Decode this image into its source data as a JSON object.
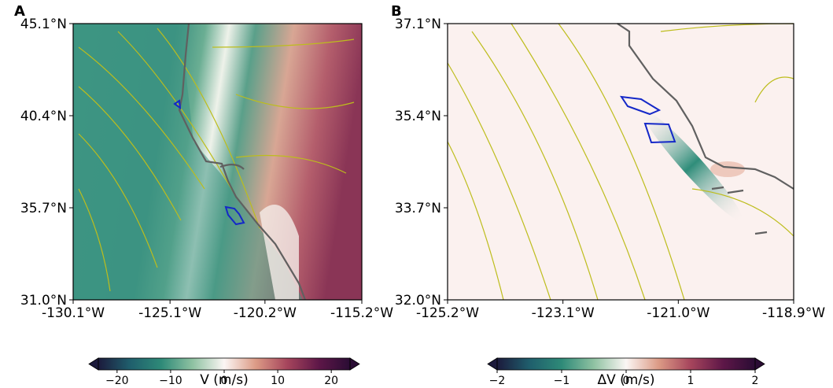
{
  "chart_data": [
    {
      "type": "map",
      "panel_label": "A",
      "xlim": [
        -130.1,
        -115.2
      ],
      "ylim": [
        31.0,
        45.1
      ],
      "xticks": [
        {
          "value": -130.1,
          "label": "-130.1°W"
        },
        {
          "value": -125.1,
          "label": "-125.1°W"
        },
        {
          "value": -120.2,
          "label": "-120.2°W"
        },
        {
          "value": -115.2,
          "label": "-115.2°W"
        }
      ],
      "yticks": [
        {
          "value": 45.1,
          "label": "45.1°N"
        },
        {
          "value": 40.4,
          "label": "40.4°N"
        },
        {
          "value": 35.7,
          "label": "35.7°N"
        },
        {
          "value": 31.0,
          "label": "31.0°N"
        }
      ],
      "colorbar": {
        "label": "V (m/s)",
        "lim": [
          -23.5,
          23.5
        ],
        "ticks": [
          {
            "value": -20,
            "label": "−20"
          },
          {
            "value": -10,
            "label": "−10"
          },
          0,
          10,
          20
        ],
        "colors": [
          "#1c1a3c",
          "#1f5e6c",
          "#2e8a78",
          "#8fc2a2",
          "#fbf6f4",
          "#dc9b86",
          "#a6455c",
          "#5e1748",
          "#2a0c34"
        ]
      }
    },
    {
      "type": "map",
      "panel_label": "B",
      "xlim": [
        -125.2,
        -118.9
      ],
      "ylim": [
        32.0,
        37.1
      ],
      "xticks": [
        {
          "value": -125.2,
          "label": "-125.2°W"
        },
        {
          "value": -123.1,
          "label": "-123.1°W"
        },
        {
          "value": -121.0,
          "label": "-121.0°W"
        },
        {
          "value": -118.9,
          "label": "-118.9°W"
        }
      ],
      "yticks": [
        {
          "value": 37.1,
          "label": "37.1°N"
        },
        {
          "value": 35.4,
          "label": "35.4°N"
        },
        {
          "value": 33.7,
          "label": "33.7°N"
        },
        {
          "value": 32.0,
          "label": "32.0°N"
        }
      ],
      "colorbar": {
        "label": "ΔV (m/s)",
        "lim": [
          -2,
          2
        ],
        "ticks": [
          {
            "value": -2,
            "label": "−2"
          },
          {
            "value": -1,
            "label": "−1"
          },
          0,
          1,
          2
        ],
        "colors": [
          "#1c1a3c",
          "#1f5e6c",
          "#2e8a78",
          "#8fc2a2",
          "#fbf6f4",
          "#dc9b86",
          "#a6455c",
          "#5e1748",
          "#2a0c34"
        ]
      }
    }
  ]
}
